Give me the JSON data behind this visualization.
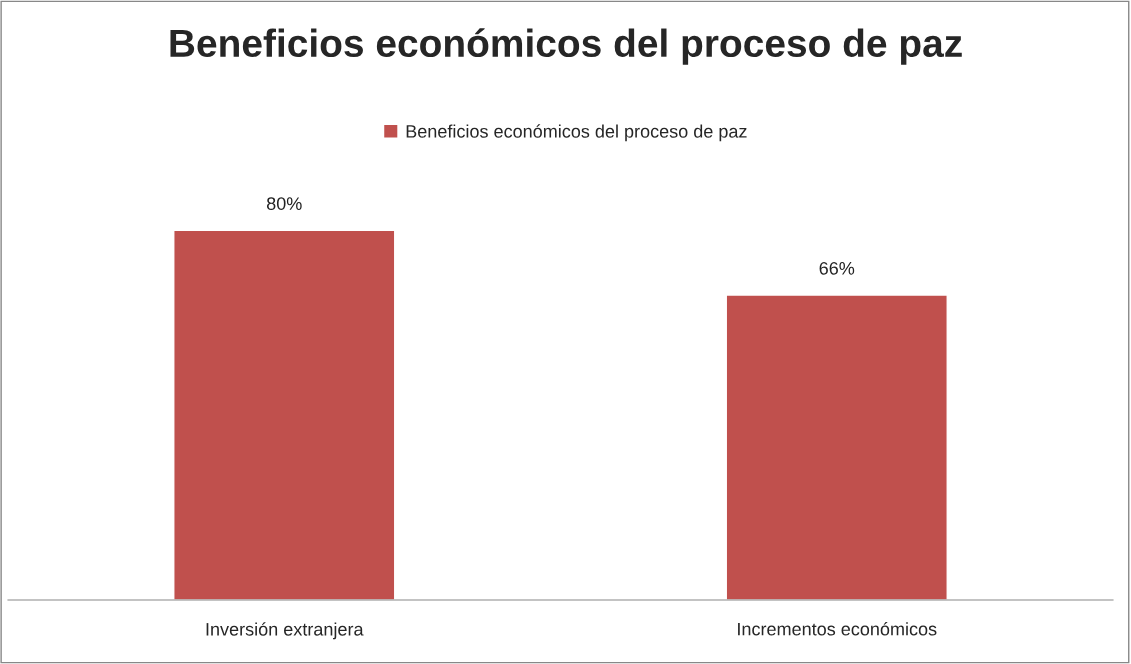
{
  "chart_data": {
    "type": "bar",
    "title": "Beneficios económicos del proceso de paz",
    "categories": [
      "Inversión extranjera",
      "Incrementos económicos"
    ],
    "series": [
      {
        "name": "Beneficios económicos del proceso de paz",
        "color": "#c0504d",
        "values": [
          80,
          66
        ],
        "value_labels": [
          "80%",
          "66%"
        ]
      }
    ],
    "legend": "top",
    "grid": false
  }
}
